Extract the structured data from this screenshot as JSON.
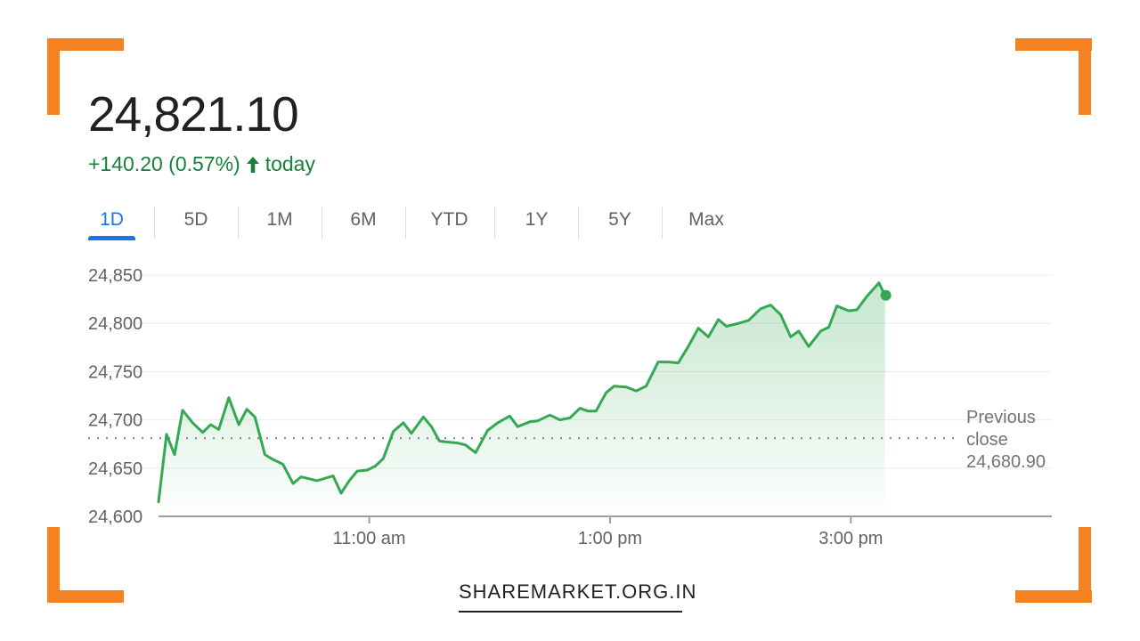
{
  "header": {
    "price": "24,821.10",
    "change": "+140.20 (0.57%)",
    "arrow_icon": "arrow-up-icon",
    "period": "today"
  },
  "tabs": [
    {
      "label": "1D",
      "active": true
    },
    {
      "label": "5D",
      "active": false
    },
    {
      "label": "1M",
      "active": false
    },
    {
      "label": "6M",
      "active": false
    },
    {
      "label": "YTD",
      "active": false
    },
    {
      "label": "1Y",
      "active": false
    },
    {
      "label": "5Y",
      "active": false
    },
    {
      "label": "Max",
      "active": false
    }
  ],
  "previous_close": {
    "label_line1": "Previous",
    "label_line2": "close",
    "value": "24,680.90"
  },
  "footer": {
    "site": "SHAREMARKET.ORG.IN"
  },
  "colors": {
    "accent_corner": "#f58220",
    "line": "#34a853",
    "positive_text": "#188038",
    "active_tab": "#1a73e8"
  },
  "chart_data": {
    "type": "area",
    "y_ticks": [
      "24,850",
      "24,800",
      "24,750",
      "24,700",
      "24,650",
      "24,600"
    ],
    "y_tick_values": [
      24850,
      24800,
      24750,
      24700,
      24650,
      24600
    ],
    "x_ticks": [
      "11:00 am",
      "1:00 pm",
      "3:00 pm"
    ],
    "x_tick_values": [
      660,
      780,
      900
    ],
    "x_range": [
      555,
      950
    ],
    "ylim": [
      24600,
      24850
    ],
    "previous_close": 24680.9,
    "grid": true,
    "series": [
      {
        "x": [
          555,
          559,
          563,
          567,
          572,
          577,
          581,
          585,
          590,
          595,
          599,
          603,
          608,
          612,
          617,
          622,
          626,
          634,
          642,
          646,
          650,
          654,
          659,
          663,
          667,
          672,
          677,
          681,
          687,
          691,
          695,
          699,
          704,
          708,
          713,
          719,
          724,
          730,
          734,
          740,
          744,
          750,
          755,
          760,
          765,
          769,
          773,
          778,
          782,
          788,
          793,
          798,
          804,
          809,
          814,
          819,
          824,
          829,
          834,
          838,
          844,
          849,
          855,
          860,
          865,
          870,
          874,
          879,
          885,
          889,
          893,
          899,
          903,
          908,
          914,
          917
        ],
        "y": [
          24615,
          24685,
          24664,
          24710,
          24697,
          24687,
          24695,
          24690,
          24723,
          24695,
          24711,
          24703,
          24664,
          24659,
          24654,
          24634,
          24641,
          24637,
          24642,
          24624,
          24637,
          24647,
          24648,
          24652,
          24660,
          24688,
          24697,
          24686,
          24703,
          24693,
          24678,
          24677,
          24676,
          24674,
          24666,
          24689,
          24697,
          24704,
          24693,
          24698,
          24699,
          24705,
          24700,
          24702,
          24712,
          24709,
          24709,
          24728,
          24735,
          24734,
          24730,
          24735,
          24760,
          24760,
          24759,
          24776,
          24795,
          24786,
          24804,
          24797,
          24800,
          24803,
          24815,
          24819,
          24809,
          24786,
          24792,
          24776,
          24792,
          24796,
          24818,
          24813,
          24814,
          24828,
          24842,
          24829
        ]
      }
    ]
  }
}
